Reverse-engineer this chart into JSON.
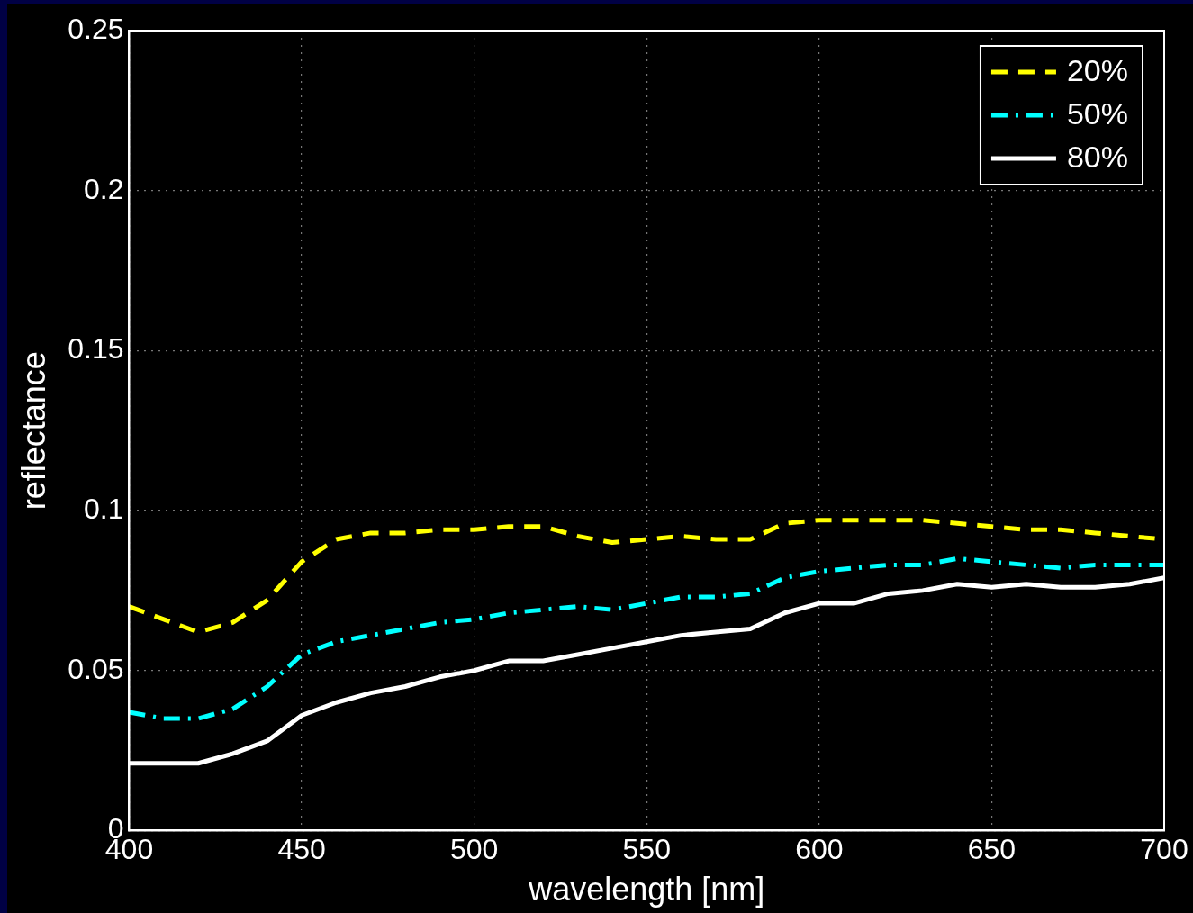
{
  "chart_data": {
    "type": "line",
    "xlabel": "wavelength [nm]",
    "ylabel": "reflectance",
    "x": [
      400,
      410,
      420,
      430,
      440,
      450,
      460,
      470,
      480,
      490,
      500,
      510,
      520,
      530,
      540,
      550,
      560,
      570,
      580,
      590,
      600,
      610,
      620,
      630,
      640,
      650,
      660,
      670,
      680,
      690,
      700
    ],
    "series": [
      {
        "name": "20%",
        "color": "#ffff00",
        "line_style": "dashed",
        "values": [
          0.07,
          0.066,
          0.062,
          0.065,
          0.072,
          0.084,
          0.091,
          0.093,
          0.093,
          0.094,
          0.094,
          0.095,
          0.095,
          0.092,
          0.09,
          0.091,
          0.092,
          0.091,
          0.091,
          0.096,
          0.097,
          0.097,
          0.097,
          0.097,
          0.096,
          0.095,
          0.094,
          0.094,
          0.093,
          0.092,
          0.091
        ]
      },
      {
        "name": "50%",
        "color": "#00ffff",
        "line_style": "dashdot",
        "values": [
          0.037,
          0.035,
          0.035,
          0.038,
          0.045,
          0.055,
          0.059,
          0.061,
          0.063,
          0.065,
          0.066,
          0.068,
          0.069,
          0.07,
          0.069,
          0.071,
          0.073,
          0.073,
          0.074,
          0.079,
          0.081,
          0.082,
          0.083,
          0.083,
          0.085,
          0.084,
          0.083,
          0.082,
          0.083,
          0.083,
          0.083
        ]
      },
      {
        "name": "80%",
        "color": "#ffffff",
        "line_style": "solid",
        "values": [
          0.021,
          0.021,
          0.021,
          0.024,
          0.028,
          0.036,
          0.04,
          0.043,
          0.045,
          0.048,
          0.05,
          0.053,
          0.053,
          0.055,
          0.057,
          0.059,
          0.061,
          0.062,
          0.063,
          0.068,
          0.071,
          0.071,
          0.074,
          0.075,
          0.077,
          0.076,
          0.077,
          0.076,
          0.076,
          0.077,
          0.079
        ]
      }
    ],
    "xlim": [
      400,
      700
    ],
    "xticks": [
      400,
      450,
      500,
      550,
      600,
      650,
      700
    ],
    "ylim": [
      0,
      0.25
    ],
    "yticks": [
      0,
      0.05,
      0.1,
      0.15,
      0.2,
      0.25
    ],
    "grid": true,
    "legend": "top right",
    "marker": "none"
  }
}
